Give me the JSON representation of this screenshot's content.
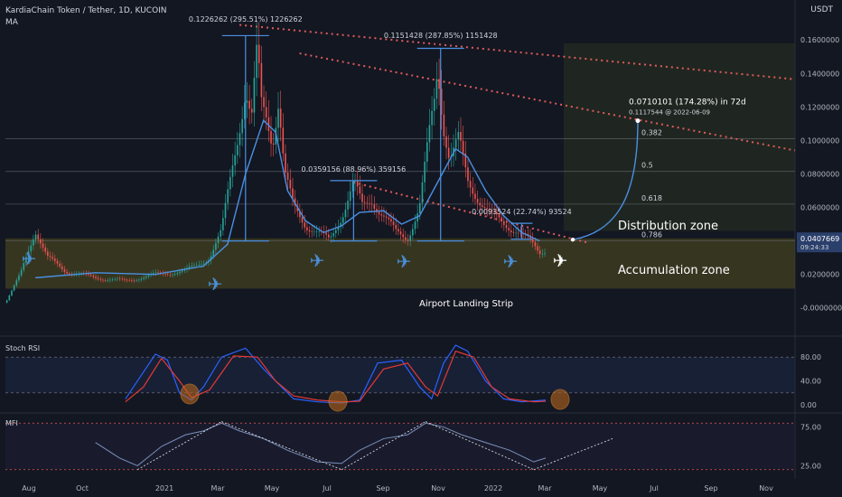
{
  "header": {
    "title": "KardiaChain Token / Tether, 1D, KUCOIN",
    "indicator": "MA",
    "currency": "USDT"
  },
  "colors": {
    "background": "#131722",
    "candle_up": "#26a69a",
    "candle_down": "#ef5350",
    "ma_line": "#4a90e2",
    "trendline": "#e05a5a",
    "annotation": "#4a90e2",
    "accum_zone": "#4a4520",
    "dist_zone": "#2a3320",
    "plane_icon": "#4a8fd9",
    "plane_icon_white": "#ffffff",
    "rsi_k": "#2962ff",
    "rsi_d": "#e53935",
    "mfi_line": "#7b8fb8"
  },
  "chart_data": {
    "type": "candlestick",
    "title": "KardiaChain Token / Tether, 1D, KUCOIN",
    "y_axis": {
      "ticks": [
        "0.1600000",
        "0.1400000",
        "0.1200000",
        "0.1000000",
        "0.0800000",
        "0.0600000",
        "0.0400000",
        "0.0200000",
        "-0.0000000"
      ],
      "range": [
        -0.005,
        0.172
      ],
      "current_price": "0.0407669",
      "current_time": "09:24:33"
    },
    "x_axis": {
      "ticks": [
        "Aug",
        "Oct",
        "2021",
        "Mar",
        "May",
        "Jul",
        "Sep",
        "Nov",
        "2022",
        "Mar",
        "May",
        "Jul",
        "Sep",
        "Nov"
      ]
    },
    "price_path": [
      {
        "t": 0,
        "v": 0.003
      },
      {
        "t": 5,
        "v": 0.02
      },
      {
        "t": 10,
        "v": 0.047
      },
      {
        "t": 14,
        "v": 0.03
      },
      {
        "t": 20,
        "v": 0.022
      },
      {
        "t": 30,
        "v": 0.018
      },
      {
        "t": 40,
        "v": 0.016
      },
      {
        "t": 50,
        "v": 0.02
      },
      {
        "t": 60,
        "v": 0.022
      },
      {
        "t": 68,
        "v": 0.03
      },
      {
        "t": 72,
        "v": 0.045
      },
      {
        "t": 76,
        "v": 0.09
      },
      {
        "t": 80,
        "v": 0.13
      },
      {
        "t": 82,
        "v": 0.11
      },
      {
        "t": 84,
        "v": 0.155
      },
      {
        "t": 85,
        "v": 0.1226
      },
      {
        "t": 87,
        "v": 0.115
      },
      {
        "t": 89,
        "v": 0.1
      },
      {
        "t": 91,
        "v": 0.125
      },
      {
        "t": 93,
        "v": 0.08
      },
      {
        "t": 96,
        "v": 0.06
      },
      {
        "t": 100,
        "v": 0.05
      },
      {
        "t": 104,
        "v": 0.045
      },
      {
        "t": 108,
        "v": 0.04
      },
      {
        "t": 112,
        "v": 0.055
      },
      {
        "t": 116,
        "v": 0.075
      },
      {
        "t": 119,
        "v": 0.06
      },
      {
        "t": 122,
        "v": 0.065
      },
      {
        "t": 126,
        "v": 0.055
      },
      {
        "t": 130,
        "v": 0.045
      },
      {
        "t": 134,
        "v": 0.042
      },
      {
        "t": 138,
        "v": 0.06
      },
      {
        "t": 141,
        "v": 0.1
      },
      {
        "t": 143,
        "v": 0.125
      },
      {
        "t": 144,
        "v": 0.145
      },
      {
        "t": 146,
        "v": 0.11
      },
      {
        "t": 148,
        "v": 0.09
      },
      {
        "t": 151,
        "v": 0.1
      },
      {
        "t": 154,
        "v": 0.075
      },
      {
        "t": 158,
        "v": 0.065
      },
      {
        "t": 162,
        "v": 0.055
      },
      {
        "t": 166,
        "v": 0.05
      },
      {
        "t": 170,
        "v": 0.047
      },
      {
        "t": 174,
        "v": 0.041
      },
      {
        "t": 178,
        "v": 0.033
      },
      {
        "t": 180,
        "v": 0.035
      }
    ],
    "ma_path": [
      {
        "t": 10,
        "v": 0.018
      },
      {
        "t": 30,
        "v": 0.021
      },
      {
        "t": 50,
        "v": 0.02
      },
      {
        "t": 66,
        "v": 0.025
      },
      {
        "t": 74,
        "v": 0.038
      },
      {
        "t": 80,
        "v": 0.08
      },
      {
        "t": 86,
        "v": 0.112
      },
      {
        "t": 90,
        "v": 0.105
      },
      {
        "t": 94,
        "v": 0.07
      },
      {
        "t": 100,
        "v": 0.052
      },
      {
        "t": 106,
        "v": 0.045
      },
      {
        "t": 112,
        "v": 0.049
      },
      {
        "t": 118,
        "v": 0.057
      },
      {
        "t": 126,
        "v": 0.058
      },
      {
        "t": 132,
        "v": 0.05
      },
      {
        "t": 138,
        "v": 0.055
      },
      {
        "t": 144,
        "v": 0.075
      },
      {
        "t": 150,
        "v": 0.095
      },
      {
        "t": 154,
        "v": 0.09
      },
      {
        "t": 160,
        "v": 0.07
      },
      {
        "t": 166,
        "v": 0.055
      },
      {
        "t": 172,
        "v": 0.045
      },
      {
        "t": 178,
        "v": 0.04
      }
    ],
    "levels": [
      {
        "label": "0.382",
        "value": 0.101
      },
      {
        "label": "0.5",
        "value": 0.0815
      },
      {
        "label": "0.618",
        "value": 0.062
      },
      {
        "label": "0.786",
        "value": 0.04
      }
    ],
    "measurements": [
      {
        "text": "0.1226262 (295.51%) 1226262",
        "t1": 80,
        "v_low": 0.04,
        "v_high": 0.1626
      },
      {
        "text": "0.1151428 (287.85%) 1151428",
        "t1": 145,
        "v_low": 0.04,
        "v_high": 0.155
      },
      {
        "text": "0.0359156 (88.96%) 359156",
        "t1": 116,
        "v_low": 0.04,
        "v_high": 0.076
      },
      {
        "text": "0.0093524 (22.74%) 93524",
        "t1": 172,
        "v_low": 0.041,
        "v_high": 0.0505
      }
    ],
    "projection": {
      "line1": "0.0710101 (174.28%) in 72d",
      "line2": "0.1117544 @ 2022-06-09",
      "target": 0.1117544
    },
    "zones": {
      "distribution": "Distribution zone",
      "accumulation": "Accumulation zone",
      "strip": "Airport Landing Strip"
    },
    "stoch_rsi": {
      "label": "Stoch RSI",
      "ticks": [
        "80.00",
        "40.00",
        "0.00"
      ],
      "k": [
        [
          40,
          10
        ],
        [
          44,
          40
        ],
        [
          50,
          85
        ],
        [
          54,
          75
        ],
        [
          58,
          20
        ],
        [
          62,
          8
        ],
        [
          66,
          30
        ],
        [
          72,
          80
        ],
        [
          80,
          95
        ],
        [
          86,
          60
        ],
        [
          92,
          30
        ],
        [
          96,
          10
        ],
        [
          104,
          5
        ],
        [
          112,
          3
        ],
        [
          118,
          8
        ],
        [
          124,
          70
        ],
        [
          132,
          75
        ],
        [
          138,
          30
        ],
        [
          142,
          10
        ],
        [
          146,
          70
        ],
        [
          150,
          100
        ],
        [
          154,
          90
        ],
        [
          160,
          40
        ],
        [
          166,
          10
        ],
        [
          172,
          5
        ],
        [
          180,
          8
        ]
      ],
      "d": [
        [
          40,
          5
        ],
        [
          46,
          30
        ],
        [
          52,
          78
        ],
        [
          58,
          40
        ],
        [
          62,
          12
        ],
        [
          68,
          25
        ],
        [
          76,
          82
        ],
        [
          84,
          80
        ],
        [
          90,
          40
        ],
        [
          96,
          15
        ],
        [
          104,
          8
        ],
        [
          112,
          5
        ],
        [
          118,
          6
        ],
        [
          126,
          60
        ],
        [
          134,
          70
        ],
        [
          140,
          30
        ],
        [
          144,
          15
        ],
        [
          150,
          90
        ],
        [
          156,
          80
        ],
        [
          162,
          30
        ],
        [
          168,
          10
        ],
        [
          176,
          5
        ],
        [
          180,
          6
        ]
      ]
    },
    "mfi": {
      "label": "MFI",
      "ticks": [
        "75.00",
        "25.00"
      ],
      "values": [
        [
          30,
          55
        ],
        [
          38,
          35
        ],
        [
          44,
          25
        ],
        [
          52,
          50
        ],
        [
          60,
          65
        ],
        [
          66,
          70
        ],
        [
          72,
          80
        ],
        [
          78,
          70
        ],
        [
          86,
          60
        ],
        [
          94,
          45
        ],
        [
          104,
          30
        ],
        [
          112,
          28
        ],
        [
          118,
          45
        ],
        [
          126,
          60
        ],
        [
          134,
          65
        ],
        [
          140,
          80
        ],
        [
          146,
          75
        ],
        [
          152,
          65
        ],
        [
          160,
          55
        ],
        [
          168,
          45
        ],
        [
          176,
          30
        ],
        [
          180,
          35
        ]
      ]
    }
  }
}
